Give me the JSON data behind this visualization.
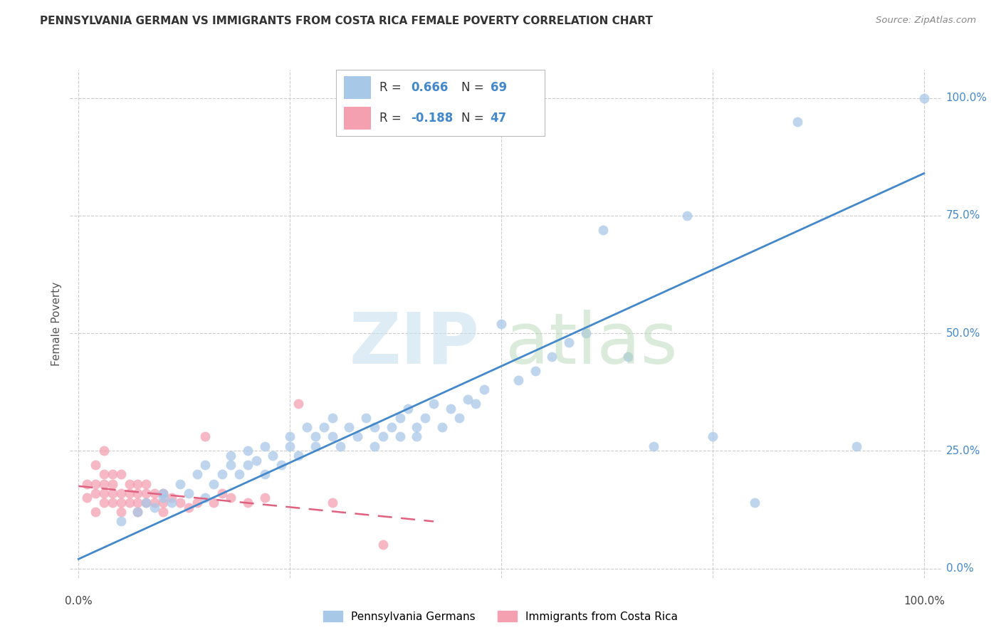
{
  "title": "PENNSYLVANIA GERMAN VS IMMIGRANTS FROM COSTA RICA FEMALE POVERTY CORRELATION CHART",
  "source": "Source: ZipAtlas.com",
  "ylabel": "Female Poverty",
  "blue_color": "#a8c8e8",
  "pink_color": "#f4a0b0",
  "blue_line_color": "#4488cc",
  "pink_line_color": "#e06080",
  "bottom_legend_blue": "Pennsylvania Germans",
  "bottom_legend_pink": "Immigrants from Costa Rica",
  "blue_R": "0.666",
  "blue_N": "69",
  "pink_R": "-0.188",
  "pink_N": "47",
  "blue_scatter_x": [
    0.05,
    0.07,
    0.08,
    0.09,
    0.1,
    0.1,
    0.11,
    0.12,
    0.13,
    0.14,
    0.15,
    0.15,
    0.16,
    0.17,
    0.18,
    0.18,
    0.19,
    0.2,
    0.2,
    0.21,
    0.22,
    0.22,
    0.23,
    0.24,
    0.25,
    0.25,
    0.26,
    0.27,
    0.28,
    0.28,
    0.29,
    0.3,
    0.3,
    0.31,
    0.32,
    0.33,
    0.34,
    0.35,
    0.35,
    0.36,
    0.37,
    0.38,
    0.38,
    0.39,
    0.4,
    0.4,
    0.41,
    0.42,
    0.43,
    0.44,
    0.45,
    0.46,
    0.47,
    0.48,
    0.5,
    0.52,
    0.54,
    0.56,
    0.58,
    0.6,
    0.62,
    0.65,
    0.68,
    0.72,
    0.75,
    0.8,
    0.85,
    0.92,
    1.0
  ],
  "blue_scatter_y": [
    0.1,
    0.12,
    0.14,
    0.13,
    0.15,
    0.16,
    0.14,
    0.18,
    0.16,
    0.2,
    0.15,
    0.22,
    0.18,
    0.2,
    0.22,
    0.24,
    0.2,
    0.22,
    0.25,
    0.23,
    0.2,
    0.26,
    0.24,
    0.22,
    0.28,
    0.26,
    0.24,
    0.3,
    0.28,
    0.26,
    0.3,
    0.28,
    0.32,
    0.26,
    0.3,
    0.28,
    0.32,
    0.3,
    0.26,
    0.28,
    0.3,
    0.32,
    0.28,
    0.34,
    0.3,
    0.28,
    0.32,
    0.35,
    0.3,
    0.34,
    0.32,
    0.36,
    0.35,
    0.38,
    0.52,
    0.4,
    0.42,
    0.45,
    0.48,
    0.5,
    0.72,
    0.45,
    0.26,
    0.75,
    0.28,
    0.14,
    0.95,
    0.26,
    1.0
  ],
  "pink_scatter_x": [
    0.01,
    0.01,
    0.02,
    0.02,
    0.02,
    0.02,
    0.03,
    0.03,
    0.03,
    0.03,
    0.03,
    0.04,
    0.04,
    0.04,
    0.04,
    0.05,
    0.05,
    0.05,
    0.05,
    0.06,
    0.06,
    0.06,
    0.07,
    0.07,
    0.07,
    0.07,
    0.08,
    0.08,
    0.08,
    0.09,
    0.09,
    0.1,
    0.1,
    0.1,
    0.11,
    0.12,
    0.13,
    0.14,
    0.15,
    0.16,
    0.17,
    0.18,
    0.2,
    0.22,
    0.26,
    0.3,
    0.36
  ],
  "pink_scatter_y": [
    0.15,
    0.18,
    0.12,
    0.16,
    0.18,
    0.22,
    0.14,
    0.16,
    0.18,
    0.2,
    0.25,
    0.14,
    0.16,
    0.18,
    0.2,
    0.12,
    0.14,
    0.16,
    0.2,
    0.14,
    0.16,
    0.18,
    0.12,
    0.14,
    0.16,
    0.18,
    0.14,
    0.16,
    0.18,
    0.14,
    0.16,
    0.12,
    0.14,
    0.16,
    0.15,
    0.14,
    0.13,
    0.14,
    0.28,
    0.14,
    0.16,
    0.15,
    0.14,
    0.15,
    0.35,
    0.14,
    0.05
  ],
  "blue_line_x0": 0.0,
  "blue_line_x1": 1.0,
  "blue_line_y0": 0.02,
  "blue_line_y1": 0.84,
  "pink_line_x0": 0.0,
  "pink_line_x1": 0.42,
  "pink_line_y0": 0.175,
  "pink_line_y1": 0.1,
  "xlim_min": -0.01,
  "xlim_max": 1.02,
  "ylim_min": -0.02,
  "ylim_max": 1.06
}
